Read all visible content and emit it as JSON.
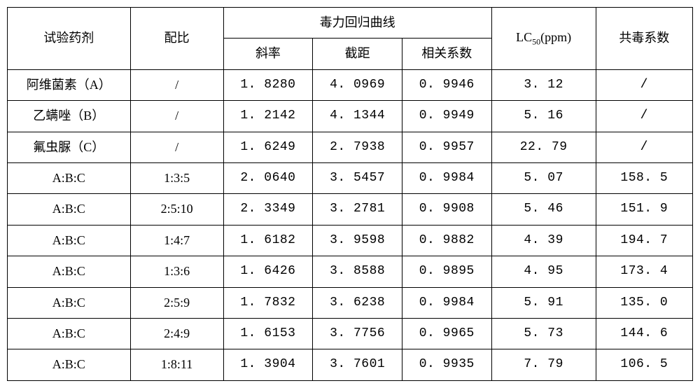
{
  "header": {
    "agent": "试验药剂",
    "ratio": "配比",
    "toxicity_curve": "毒力回归曲线",
    "slope": "斜率",
    "intercept": "截距",
    "correlation": "相关系数",
    "lc50": "LC₅₀(ppm)",
    "ctc": "共毒系数"
  },
  "rows": [
    {
      "agent": "阿维菌素（A）",
      "ratio": "/",
      "slope": "1. 8280",
      "intercept": "4. 0969",
      "corr": "0. 9946",
      "lc50": "3. 12",
      "ctc": "/"
    },
    {
      "agent": "乙螨唑（B）",
      "ratio": "/",
      "slope": "1. 2142",
      "intercept": "4. 1344",
      "corr": "0. 9949",
      "lc50": "5. 16",
      "ctc": "/"
    },
    {
      "agent": "氟虫脲（C）",
      "ratio": "/",
      "slope": "1. 6249",
      "intercept": "2. 7938",
      "corr": "0. 9957",
      "lc50": "22. 79",
      "ctc": "/"
    },
    {
      "agent": "A:B:C",
      "ratio": "1:3:5",
      "slope": "2. 0640",
      "intercept": "3. 5457",
      "corr": "0. 9984",
      "lc50": "5. 07",
      "ctc": "158. 5"
    },
    {
      "agent": "A:B:C",
      "ratio": "2:5:10",
      "slope": "2. 3349",
      "intercept": "3. 2781",
      "corr": "0. 9908",
      "lc50": "5. 46",
      "ctc": "151. 9"
    },
    {
      "agent": "A:B:C",
      "ratio": "1:4:7",
      "slope": "1. 6182",
      "intercept": "3. 9598",
      "corr": "0. 9882",
      "lc50": "4. 39",
      "ctc": "194. 7"
    },
    {
      "agent": "A:B:C",
      "ratio": "1:3:6",
      "slope": "1. 6426",
      "intercept": "3. 8588",
      "corr": "0. 9895",
      "lc50": "4. 95",
      "ctc": "173. 4"
    },
    {
      "agent": "A:B:C",
      "ratio": "2:5:9",
      "slope": "1. 7832",
      "intercept": "3. 6238",
      "corr": "0. 9984",
      "lc50": "5. 91",
      "ctc": "135. 0"
    },
    {
      "agent": "A:B:C",
      "ratio": "2:4:9",
      "slope": "1. 6153",
      "intercept": "3. 7756",
      "corr": "0. 9965",
      "lc50": "5. 73",
      "ctc": "144. 6"
    },
    {
      "agent": "A:B:C",
      "ratio": "1:8:11",
      "slope": "1. 3904",
      "intercept": "3. 7601",
      "corr": "0. 9935",
      "lc50": "7. 79",
      "ctc": "106. 5"
    }
  ]
}
